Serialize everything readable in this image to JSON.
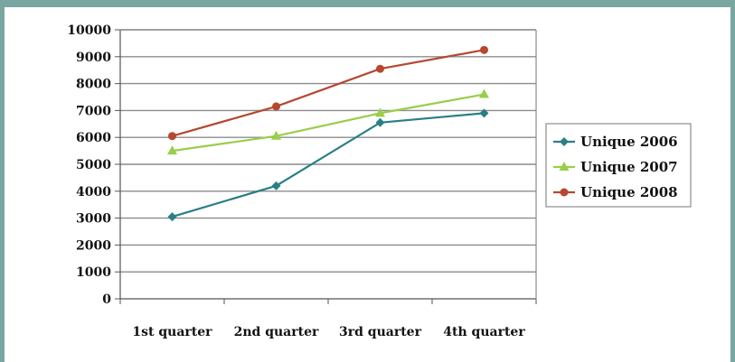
{
  "chart_data": {
    "type": "line",
    "categories": [
      "1st quarter",
      "2nd quarter",
      "3rd quarter",
      "4th quarter"
    ],
    "series": [
      {
        "name": "Unique 2006",
        "color": "#2a7f86",
        "marker": "diamond",
        "values": [
          3050,
          4200,
          6550,
          6900
        ]
      },
      {
        "name": "Unique 2007",
        "color": "#9acd4a",
        "marker": "triangle",
        "values": [
          5500,
          6050,
          6900,
          7600
        ]
      },
      {
        "name": "Unique 2008",
        "color": "#b5482f",
        "marker": "circle",
        "values": [
          6050,
          7150,
          8550,
          9250
        ]
      }
    ],
    "title": "",
    "xlabel": "",
    "ylabel": "",
    "ylim": [
      0,
      10000
    ],
    "ytick_step": 1000,
    "yticks": [
      "0",
      "1000",
      "2000",
      "3000",
      "4000",
      "5000",
      "6000",
      "7000",
      "8000",
      "9000",
      "10000"
    ],
    "grid": "horizontal",
    "legend": "right"
  }
}
